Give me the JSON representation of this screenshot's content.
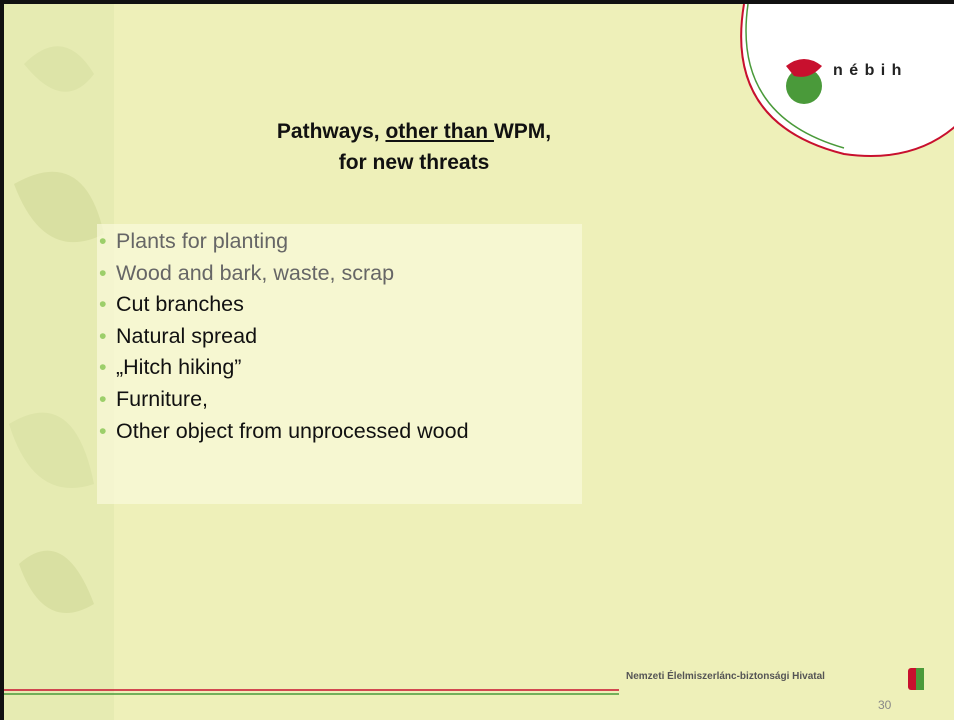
{
  "slide": {
    "title": {
      "parts": [
        "Pathways, ",
        "other than ",
        "WPM,"
      ],
      "line2": "for new threats"
    },
    "bullets": [
      "Plants for planting",
      "Wood  and bark, waste, scrap",
      "Cut branches",
      "Natural spread",
      "„Hitch hiking”",
      "Furniture,",
      "Other object from unprocessed wood"
    ],
    "logo": "n é b i h",
    "footer": "Nemzeti Élelmiszerlánc-biztonsági Hivatal",
    "page_number": "30"
  }
}
